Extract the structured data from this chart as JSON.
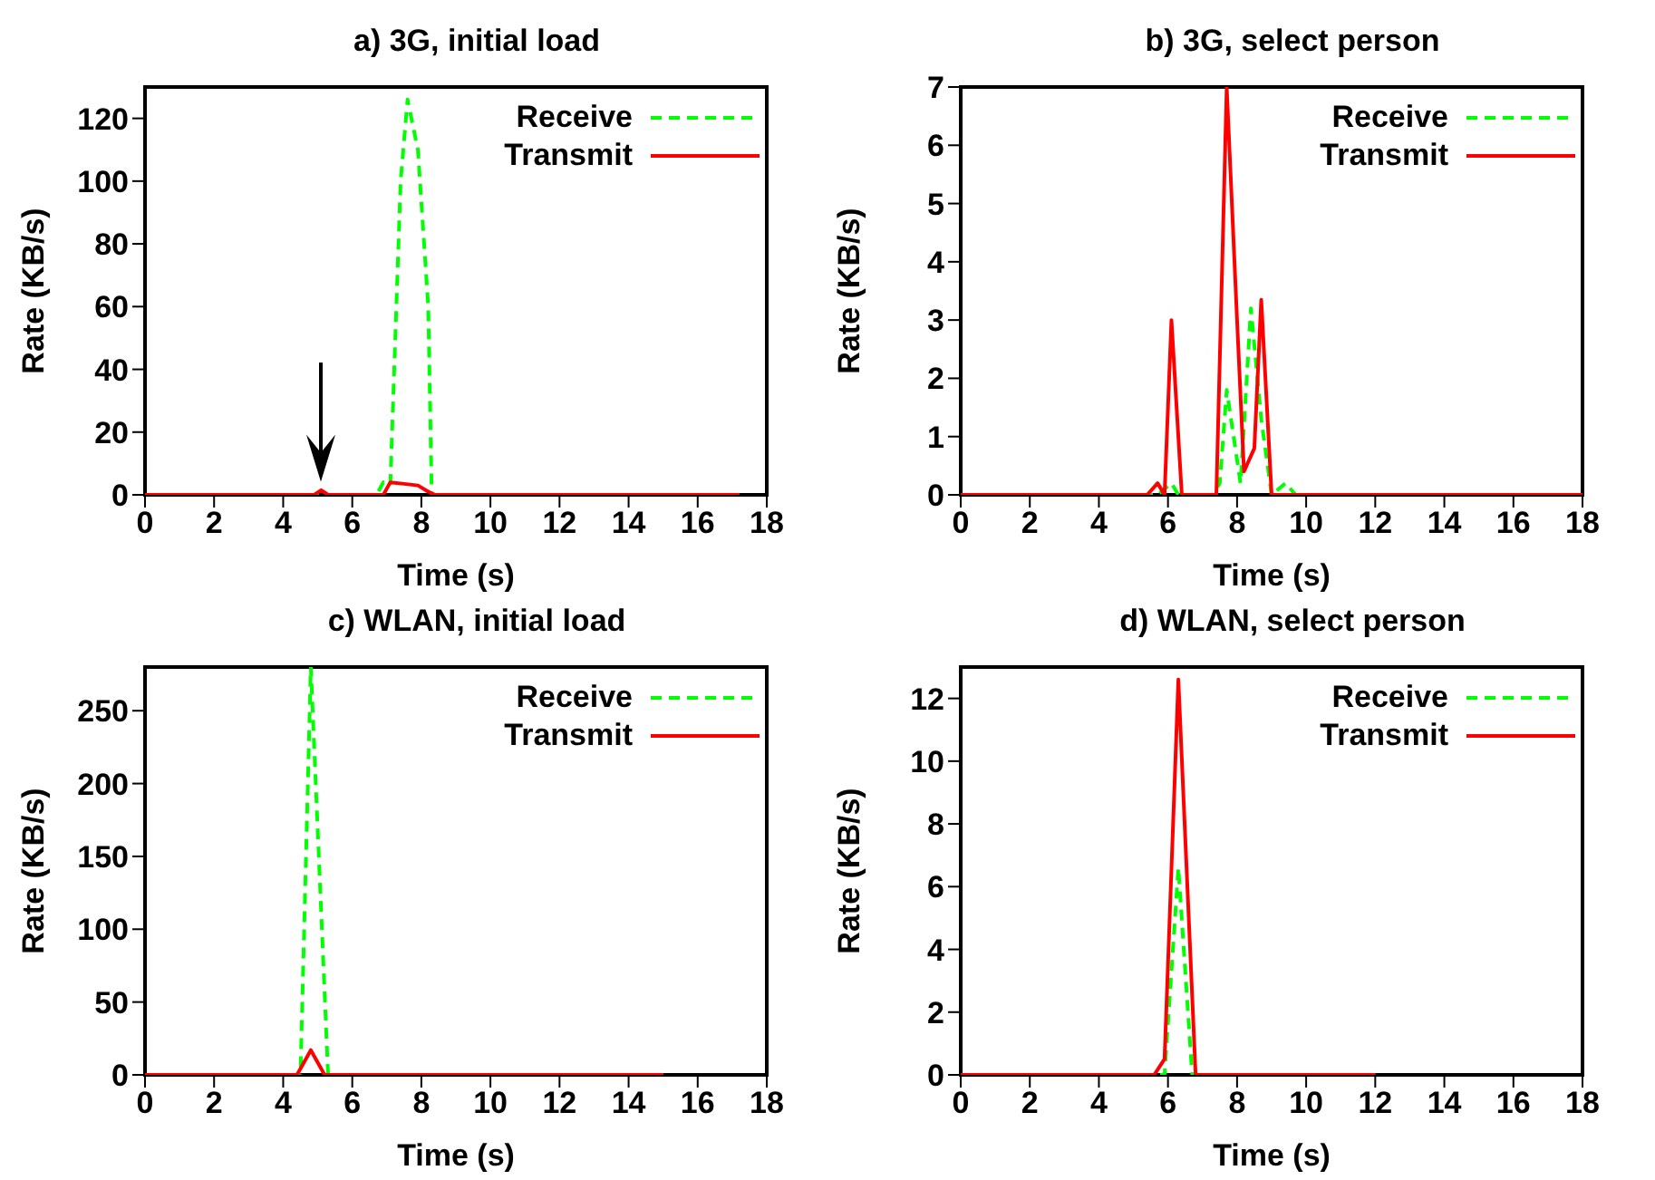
{
  "chart_data": [
    {
      "type": "line",
      "title": "a) 3G, initial load",
      "xlabel": "Time (s)",
      "ylabel": "Rate (KB/s)",
      "xlim": [
        0,
        18
      ],
      "xticks": [
        0,
        2,
        4,
        6,
        8,
        10,
        12,
        14,
        16,
        18
      ],
      "ylim": [
        0,
        130
      ],
      "yticks": [
        0,
        20,
        40,
        60,
        80,
        100,
        120
      ],
      "grid": false,
      "legend": "top right",
      "marker": "none",
      "series": [
        {
          "name": "Receive",
          "color": "#00ff00",
          "line_style": "dashed",
          "x": [
            0,
            6.7,
            6.9,
            7.1,
            7.4,
            7.6,
            7.9,
            8.2,
            8.3,
            17.2
          ],
          "values": [
            0,
            0,
            4,
            3,
            100,
            126,
            110,
            60,
            0,
            0
          ]
        },
        {
          "name": "Transmit",
          "color": "#ff0000",
          "line_style": "solid",
          "x": [
            0,
            4.9,
            5.1,
            5.3,
            6.9,
            7.1,
            7.5,
            7.9,
            8.2,
            8.4,
            17.2
          ],
          "values": [
            0,
            0,
            1.5,
            0,
            0,
            4,
            3.5,
            3,
            1,
            0,
            0
          ]
        }
      ]
    },
    {
      "type": "line",
      "title": "b) 3G, select person",
      "xlabel": "Time (s)",
      "ylabel": "Rate (KB/s)",
      "xlim": [
        0,
        18
      ],
      "xticks": [
        0,
        2,
        4,
        6,
        8,
        10,
        12,
        14,
        16,
        18
      ],
      "ylim": [
        0,
        7
      ],
      "yticks": [
        0,
        1,
        2,
        3,
        4,
        5,
        6,
        7
      ],
      "grid": false,
      "legend": "top right",
      "marker": "none",
      "series": [
        {
          "name": "Receive",
          "color": "#00ff00",
          "line_style": "dashed",
          "x": [
            0,
            5.7,
            6.1,
            6.3,
            7.3,
            7.5,
            7.7,
            8.1,
            8.4,
            8.7,
            9.0,
            9.4,
            9.7,
            18
          ],
          "values": [
            0,
            0,
            0.2,
            0,
            0,
            0.2,
            1.8,
            0.2,
            3.2,
            1.3,
            0,
            0.2,
            0,
            0
          ]
        },
        {
          "name": "Transmit",
          "color": "#ff0000",
          "line_style": "solid",
          "x": [
            0,
            5.4,
            5.7,
            5.9,
            6.1,
            6.4,
            7.4,
            7.7,
            8.0,
            8.2,
            8.5,
            8.7,
            9.0,
            18
          ],
          "values": [
            0,
            0,
            0.2,
            0,
            3,
            0,
            0,
            7,
            3,
            0.4,
            0.8,
            3.35,
            0,
            0
          ]
        }
      ]
    },
    {
      "type": "line",
      "title": "c) WLAN, initial load",
      "xlabel": "Time (s)",
      "ylabel": "Rate (KB/s)",
      "xlim": [
        0,
        18
      ],
      "xticks": [
        0,
        2,
        4,
        6,
        8,
        10,
        12,
        14,
        16,
        18
      ],
      "ylim": [
        0,
        280
      ],
      "yticks": [
        0,
        50,
        100,
        150,
        200,
        250
      ],
      "grid": false,
      "legend": "top right",
      "marker": "none",
      "series": [
        {
          "name": "Receive",
          "color": "#00ff00",
          "line_style": "dashed",
          "x": [
            0,
            4.5,
            4.8,
            5.3,
            15
          ],
          "values": [
            0,
            0,
            280,
            0,
            0
          ]
        },
        {
          "name": "Transmit",
          "color": "#ff0000",
          "line_style": "solid",
          "x": [
            0,
            4.4,
            4.8,
            5.2,
            15
          ],
          "values": [
            0,
            0,
            17,
            0,
            0
          ]
        }
      ]
    },
    {
      "type": "line",
      "title": "d) WLAN, select person",
      "xlabel": "Time (s)",
      "ylabel": "Rate (KB/s)",
      "xlim": [
        0,
        18
      ],
      "xticks": [
        0,
        2,
        4,
        6,
        8,
        10,
        12,
        14,
        16,
        18
      ],
      "ylim": [
        0,
        13
      ],
      "yticks": [
        0,
        2,
        4,
        6,
        8,
        10,
        12
      ],
      "grid": false,
      "legend": "top right",
      "marker": "none",
      "series": [
        {
          "name": "Receive",
          "color": "#00ff00",
          "line_style": "dashed",
          "x": [
            0,
            5.9,
            6.3,
            6.7,
            12
          ],
          "values": [
            0,
            0,
            6.6,
            0,
            0
          ]
        },
        {
          "name": "Transmit",
          "color": "#ff0000",
          "line_style": "solid",
          "x": [
            0,
            5.6,
            5.9,
            6.3,
            6.8,
            12
          ],
          "values": [
            0,
            0,
            0.5,
            12.6,
            0,
            0
          ]
        }
      ]
    }
  ]
}
